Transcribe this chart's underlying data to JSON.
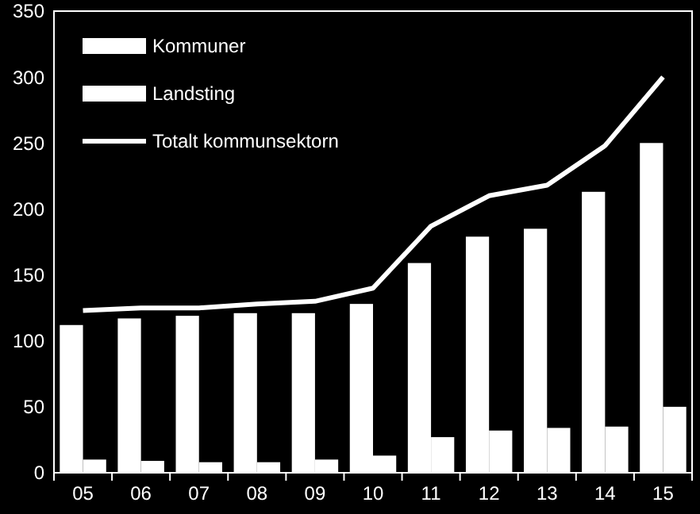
{
  "chart_data": {
    "type": "bar",
    "categories": [
      "05",
      "06",
      "07",
      "08",
      "09",
      "10",
      "11",
      "12",
      "13",
      "14",
      "15"
    ],
    "series": [
      {
        "name": "Kommuner",
        "color": "#ffffff",
        "values": [
          112,
          117,
          119,
          121,
          121,
          128,
          159,
          179,
          185,
          213,
          250
        ]
      },
      {
        "name": "Landsting",
        "color": "#ffffff",
        "values": [
          10,
          9,
          8,
          8,
          10,
          13,
          27,
          32,
          34,
          35,
          50
        ]
      },
      {
        "name": "Totalt kommunsektorn",
        "type": "line",
        "color": "#ffffff",
        "values": [
          123,
          125,
          125,
          128,
          130,
          140,
          187,
          210,
          218,
          248,
          300
        ]
      }
    ],
    "ylim": [
      0,
      350
    ],
    "yticks": [
      0,
      50,
      100,
      150,
      200,
      250,
      300,
      350
    ],
    "grid": false,
    "legend": "top left",
    "marker": "none",
    "line_style": "solid"
  }
}
